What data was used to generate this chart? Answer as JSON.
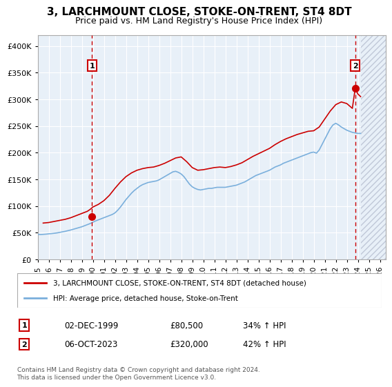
{
  "title": "3, LARCHMOUNT CLOSE, STOKE-ON-TRENT, ST4 8DT",
  "subtitle": "Price paid vs. HM Land Registry's House Price Index (HPI)",
  "ylabel": "",
  "xlabel": "",
  "ylim": [
    0,
    420000
  ],
  "xlim_start": 1995.0,
  "xlim_end": 2026.5,
  "yticks": [
    0,
    50000,
    100000,
    150000,
    200000,
    250000,
    300000,
    350000,
    400000
  ],
  "ytick_labels": [
    "£0",
    "£50K",
    "£100K",
    "£150K",
    "£200K",
    "£250K",
    "£300K",
    "£350K",
    "£400K"
  ],
  "xticks": [
    1995,
    1996,
    1997,
    1998,
    1999,
    2000,
    2001,
    2002,
    2003,
    2004,
    2005,
    2006,
    2007,
    2008,
    2009,
    2010,
    2011,
    2012,
    2013,
    2014,
    2015,
    2016,
    2017,
    2018,
    2019,
    2020,
    2021,
    2022,
    2023,
    2024,
    2025,
    2026
  ],
  "bg_color": "#e8f0f8",
  "hatch_color": "#c0c8d8",
  "grid_color": "#ffffff",
  "line_color_hpi": "#7aafdc",
  "line_color_price": "#cc0000",
  "marker_color": "#cc0000",
  "sale1_x": 1999.92,
  "sale1_y": 80500,
  "sale1_label": "1",
  "sale1_date": "02-DEC-1999",
  "sale1_price": "£80,500",
  "sale1_hpi": "34% ↑ HPI",
  "sale2_x": 2023.76,
  "sale2_y": 320000,
  "sale2_label": "2",
  "sale2_date": "06-OCT-2023",
  "sale2_price": "£320,000",
  "sale2_hpi": "42% ↑ HPI",
  "legend_line1": "3, LARCHMOUNT CLOSE, STOKE-ON-TRENT, ST4 8DT (detached house)",
  "legend_line2": "HPI: Average price, detached house, Stoke-on-Trent",
  "footnote": "Contains HM Land Registry data © Crown copyright and database right 2024.\nThis data is licensed under the Open Government Licence v3.0.",
  "hpi_data_x": [
    1995.0,
    1995.25,
    1995.5,
    1995.75,
    1996.0,
    1996.25,
    1996.5,
    1996.75,
    1997.0,
    1997.25,
    1997.5,
    1997.75,
    1998.0,
    1998.25,
    1998.5,
    1998.75,
    1999.0,
    1999.25,
    1999.5,
    1999.75,
    2000.0,
    2000.25,
    2000.5,
    2000.75,
    2001.0,
    2001.25,
    2001.5,
    2001.75,
    2002.0,
    2002.25,
    2002.5,
    2002.75,
    2003.0,
    2003.25,
    2003.5,
    2003.75,
    2004.0,
    2004.25,
    2004.5,
    2004.75,
    2005.0,
    2005.25,
    2005.5,
    2005.75,
    2006.0,
    2006.25,
    2006.5,
    2006.75,
    2007.0,
    2007.25,
    2007.5,
    2007.75,
    2008.0,
    2008.25,
    2008.5,
    2008.75,
    2009.0,
    2009.25,
    2009.5,
    2009.75,
    2010.0,
    2010.25,
    2010.5,
    2010.75,
    2011.0,
    2011.25,
    2011.5,
    2011.75,
    2012.0,
    2012.25,
    2012.5,
    2012.75,
    2013.0,
    2013.25,
    2013.5,
    2013.75,
    2014.0,
    2014.25,
    2014.5,
    2014.75,
    2015.0,
    2015.25,
    2015.5,
    2015.75,
    2016.0,
    2016.25,
    2016.5,
    2016.75,
    2017.0,
    2017.25,
    2017.5,
    2017.75,
    2018.0,
    2018.25,
    2018.5,
    2018.75,
    2019.0,
    2019.25,
    2019.5,
    2019.75,
    2020.0,
    2020.25,
    2020.5,
    2020.75,
    2021.0,
    2021.25,
    2021.5,
    2021.75,
    2022.0,
    2022.25,
    2022.5,
    2022.75,
    2023.0,
    2023.25,
    2023.5,
    2023.75,
    2024.0,
    2024.25
  ],
  "hpi_data_y": [
    47000,
    46500,
    46800,
    47200,
    47800,
    48200,
    48800,
    49500,
    50500,
    51500,
    52500,
    53800,
    55000,
    56500,
    58000,
    59500,
    61000,
    63000,
    65000,
    67000,
    69500,
    72000,
    74000,
    76000,
    78000,
    80000,
    82000,
    84000,
    87000,
    92000,
    98000,
    105000,
    112000,
    118000,
    124000,
    129000,
    133000,
    137000,
    140000,
    142000,
    144000,
    145000,
    146000,
    147000,
    149000,
    152000,
    155000,
    158000,
    161000,
    164000,
    165000,
    163000,
    160000,
    155000,
    148000,
    141000,
    136000,
    133000,
    131000,
    130000,
    131000,
    132000,
    133000,
    133000,
    134000,
    135000,
    135000,
    135000,
    135000,
    136000,
    137000,
    138000,
    139000,
    141000,
    143000,
    145000,
    148000,
    151000,
    154000,
    157000,
    159000,
    161000,
    163000,
    165000,
    167000,
    170000,
    173000,
    175000,
    177000,
    180000,
    182000,
    184000,
    186000,
    188000,
    190000,
    192000,
    194000,
    196000,
    198000,
    200000,
    201000,
    199000,
    205000,
    215000,
    225000,
    235000,
    245000,
    252000,
    255000,
    252000,
    248000,
    245000,
    242000,
    240000,
    238000,
    237000,
    236000,
    236000
  ],
  "price_data_x": [
    1995.5,
    1996.0,
    1996.5,
    1997.0,
    1997.5,
    1998.0,
    1998.5,
    1999.0,
    1999.5,
    1999.75,
    2000.0,
    2000.5,
    2001.0,
    2001.5,
    2002.0,
    2002.5,
    2003.0,
    2003.5,
    2004.0,
    2004.5,
    2005.0,
    2005.5,
    2006.0,
    2006.5,
    2007.0,
    2007.5,
    2008.0,
    2008.5,
    2009.0,
    2009.5,
    2010.0,
    2010.5,
    2011.0,
    2011.5,
    2012.0,
    2012.5,
    2013.0,
    2013.5,
    2014.0,
    2014.5,
    2015.0,
    2015.5,
    2016.0,
    2016.5,
    2017.0,
    2017.5,
    2018.0,
    2018.5,
    2019.0,
    2019.5,
    2020.0,
    2020.5,
    2021.0,
    2021.5,
    2022.0,
    2022.5,
    2023.0,
    2023.5,
    2023.76,
    2024.0,
    2024.25
  ],
  "price_data_y": [
    68000,
    69000,
    71000,
    73000,
    75000,
    78000,
    82000,
    86000,
    90000,
    93500,
    98000,
    103000,
    110000,
    120000,
    133000,
    145000,
    155000,
    162000,
    167000,
    170000,
    172000,
    173000,
    176000,
    180000,
    185000,
    190000,
    192000,
    183000,
    172000,
    167000,
    168000,
    170000,
    172000,
    173000,
    172000,
    174000,
    177000,
    181000,
    187000,
    193000,
    198000,
    203000,
    208000,
    215000,
    221000,
    226000,
    230000,
    234000,
    237000,
    240000,
    241000,
    248000,
    263000,
    278000,
    290000,
    295000,
    292000,
    283000,
    320000,
    310000,
    305000
  ]
}
